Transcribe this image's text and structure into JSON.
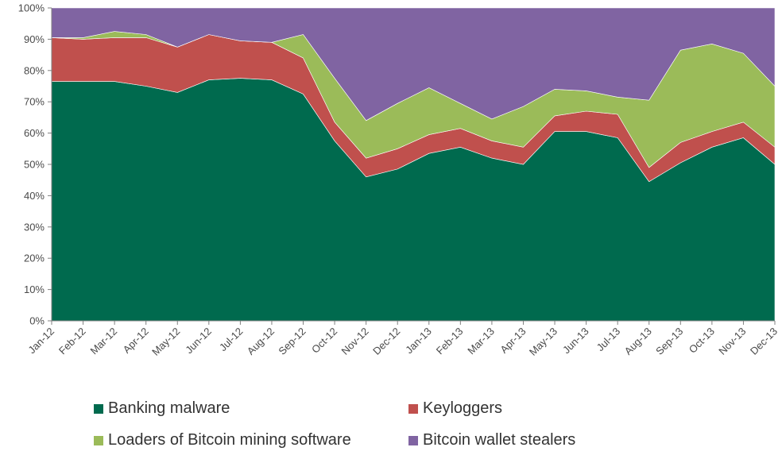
{
  "chart_data": {
    "type": "area",
    "stacked": true,
    "categories": [
      "Jan-12",
      "Feb-12",
      "Mar-12",
      "Apr-12",
      "May-12",
      "Jun-12",
      "Jul-12",
      "Aug-12",
      "Sep-12",
      "Oct-12",
      "Nov-12",
      "Dec-12",
      "Jan-13",
      "Feb-13",
      "Mar-13",
      "Apr-13",
      "May-13",
      "Jun-13",
      "Jul-13",
      "Aug-13",
      "Sep-13",
      "Oct-13",
      "Nov-13",
      "Dec-13"
    ],
    "series": [
      {
        "name": "Banking malware",
        "color": "#006a4e",
        "values": [
          76.5,
          76.5,
          76.5,
          75,
          73,
          77,
          77.5,
          77,
          72.5,
          57.5,
          46,
          48.5,
          53.5,
          55.5,
          52,
          50,
          60.5,
          60.5,
          58.5,
          44.5,
          50.5,
          55.5,
          58.5,
          50
        ]
      },
      {
        "name": "Keyloggers",
        "color": "#c0504d",
        "values": [
          14,
          13.5,
          14,
          15.5,
          14.5,
          14.5,
          12,
          12,
          11.5,
          6,
          6,
          6.5,
          6,
          6,
          5.5,
          5.5,
          5,
          6.5,
          7.5,
          4.5,
          6.5,
          5,
          5,
          5.5
        ]
      },
      {
        "name": "Loaders of Bitcoin mining software",
        "color": "#9bbb59",
        "values": [
          0,
          0.5,
          2,
          1,
          0,
          0,
          0,
          0,
          7.5,
          14,
          12,
          14.5,
          15,
          8,
          7,
          13,
          8.5,
          6.5,
          5.5,
          21.5,
          29.5,
          28,
          22,
          19.5
        ]
      },
      {
        "name": "Bitcoin wallet stealers",
        "color": "#8064a2",
        "values": [
          9.5,
          9.5,
          7.5,
          8.5,
          12.5,
          8.5,
          10.5,
          11,
          8.5,
          22.5,
          36,
          30.5,
          25.5,
          30.5,
          35.5,
          31.5,
          26,
          26.5,
          28.5,
          29.5,
          13.5,
          11.5,
          14.5,
          25
        ]
      }
    ],
    "y_ticks": [
      "0%",
      "10%",
      "20%",
      "30%",
      "40%",
      "50%",
      "60%",
      "70%",
      "80%",
      "90%",
      "100%"
    ],
    "ylim": [
      0,
      100
    ],
    "title": "",
    "xlabel": "",
    "ylabel": "",
    "legend_position": "bottom",
    "legend": [
      "Banking malware",
      "Keyloggers",
      "Loaders of Bitcoin mining software",
      "Bitcoin wallet stealers"
    ]
  }
}
